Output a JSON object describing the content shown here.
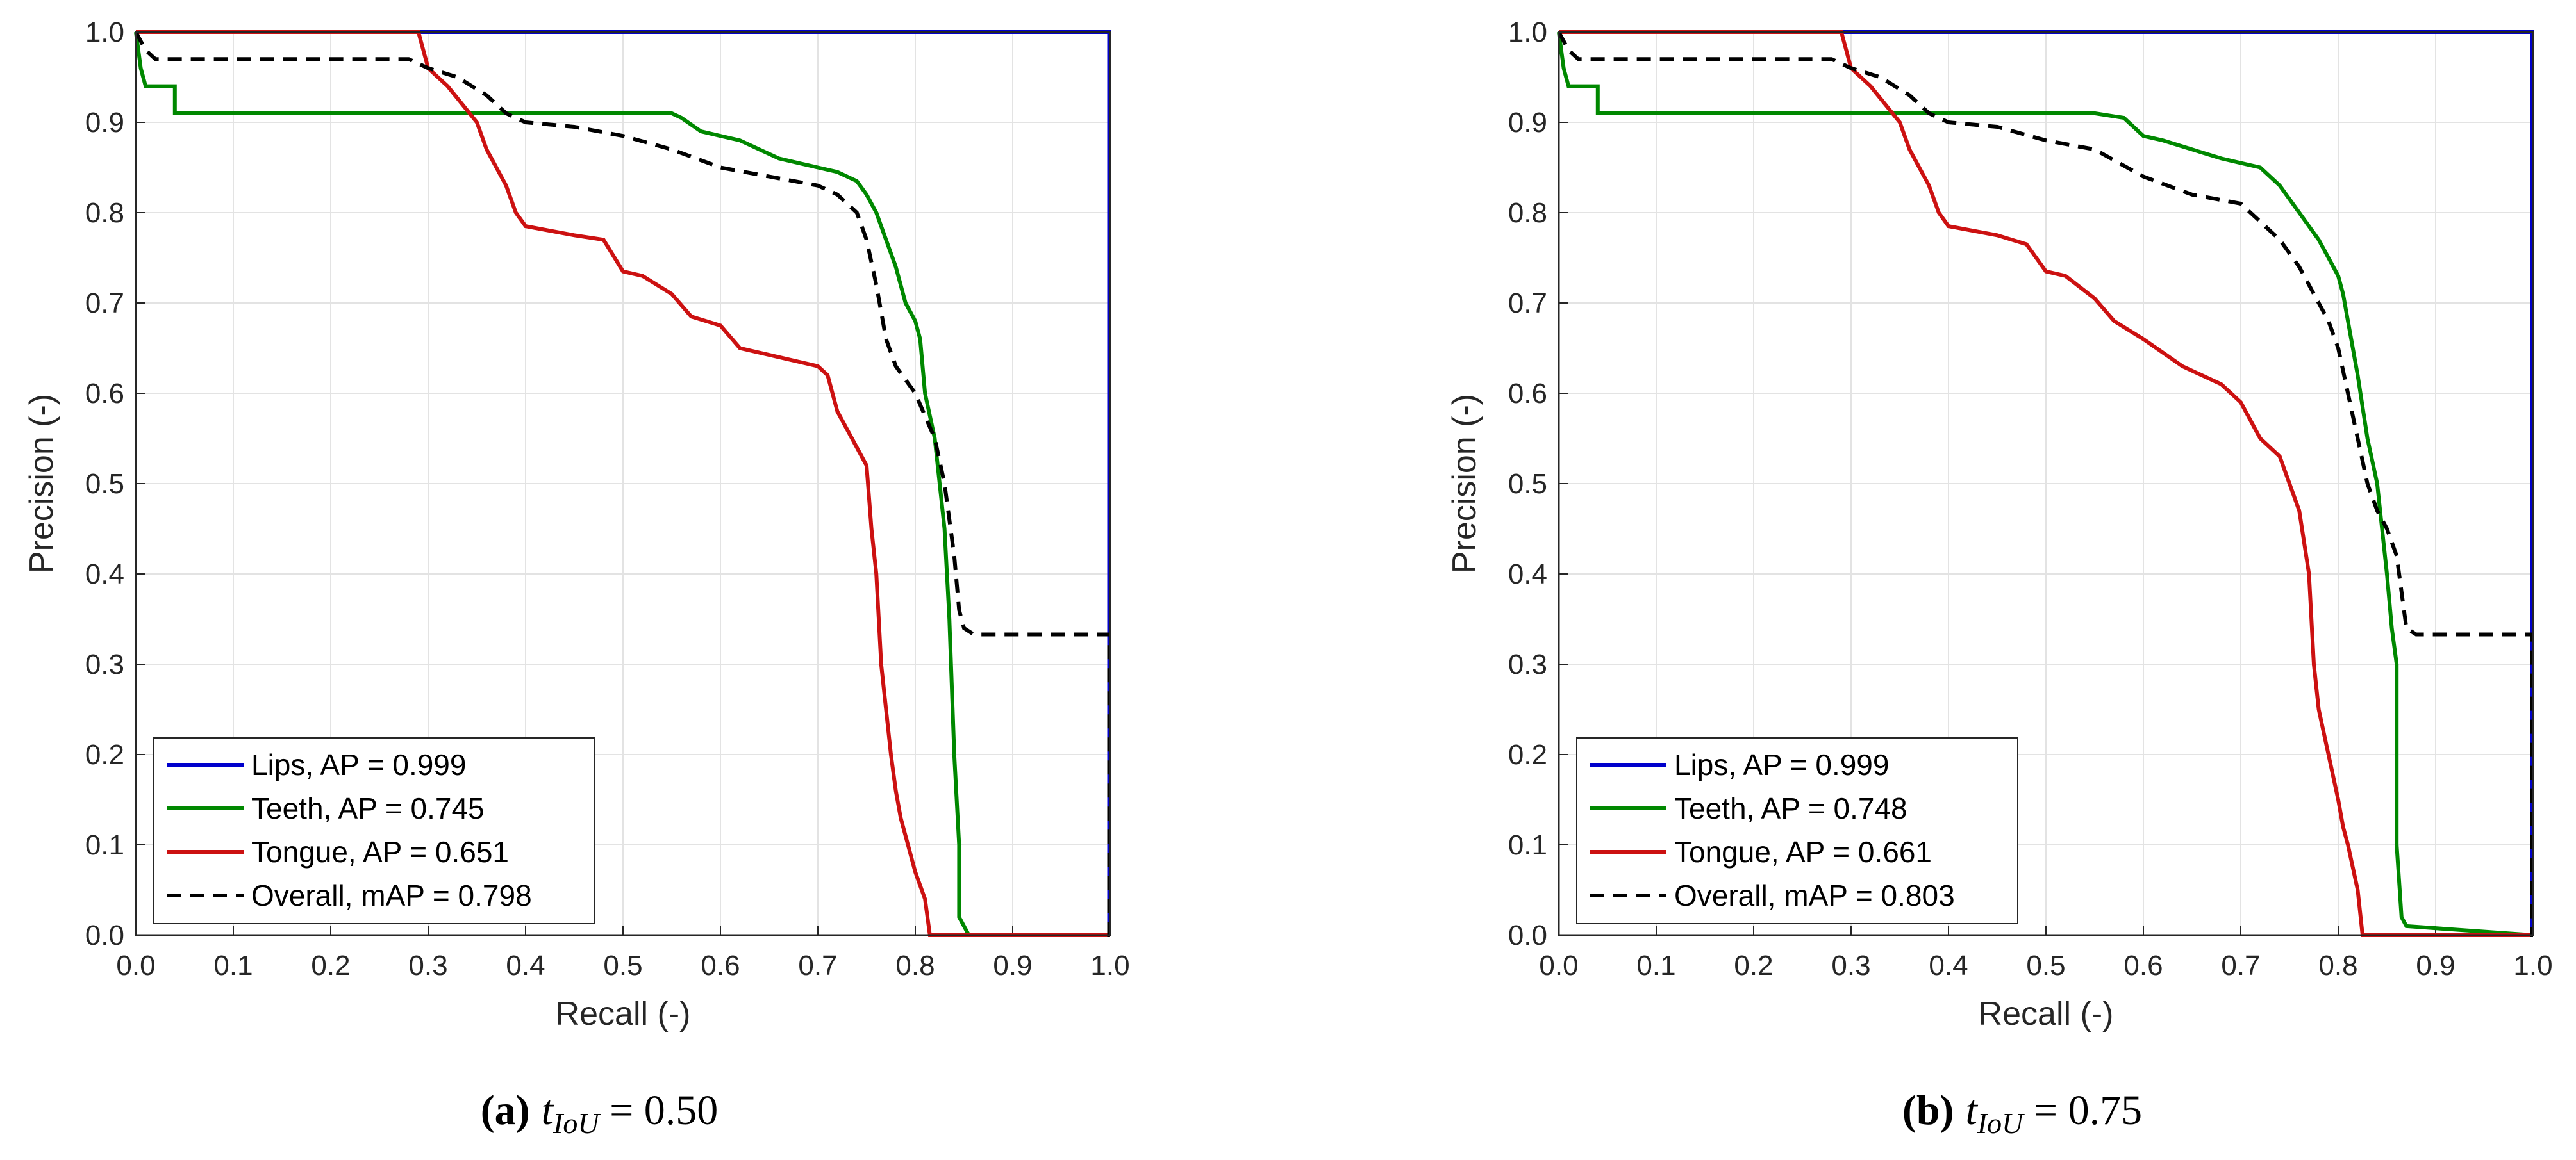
{
  "chart_data": [
    {
      "type": "line",
      "caption": {
        "letter": "(a)",
        "symbol": "t",
        "subscript": "IoU",
        "rest": " = 0.50"
      },
      "xlabel": "Recall (-)",
      "ylabel": "Precision (-)",
      "xlim": [
        0,
        1
      ],
      "ylim": [
        0,
        1
      ],
      "xticks": [
        "0.0",
        "0.1",
        "0.2",
        "0.3",
        "0.4",
        "0.5",
        "0.6",
        "0.7",
        "0.8",
        "0.9",
        "1.0"
      ],
      "yticks": [
        "0.0",
        "0.1",
        "0.2",
        "0.3",
        "0.4",
        "0.5",
        "0.6",
        "0.7",
        "0.8",
        "0.9",
        "1.0"
      ],
      "grid": true,
      "legend_position": "bottom-left",
      "series": [
        {
          "name": "Lips,  AP = 0.999",
          "color": "#0000cc",
          "dash": "solid",
          "x": [
            0,
            0.999,
            0.999,
            1.0
          ],
          "y": [
            1.0,
            1.0,
            0.0,
            0.0
          ]
        },
        {
          "name": "Teeth,  AP = 0.745",
          "color": "#008800",
          "dash": "solid",
          "x": [
            0,
            0.005,
            0.01,
            0.01,
            0.04,
            0.04,
            0.5,
            0.55,
            0.56,
            0.58,
            0.6,
            0.62,
            0.64,
            0.66,
            0.68,
            0.7,
            0.72,
            0.74,
            0.75,
            0.76,
            0.77,
            0.78,
            0.785,
            0.79,
            0.8,
            0.805,
            0.81,
            0.82,
            0.825,
            0.83,
            0.835,
            0.84,
            0.845,
            0.845,
            0.85,
            0.855,
            1.0
          ],
          "y": [
            1.0,
            0.96,
            0.94,
            0.94,
            0.94,
            0.91,
            0.91,
            0.91,
            0.905,
            0.89,
            0.885,
            0.88,
            0.87,
            0.86,
            0.855,
            0.85,
            0.845,
            0.835,
            0.82,
            0.8,
            0.77,
            0.74,
            0.72,
            0.7,
            0.68,
            0.66,
            0.6,
            0.55,
            0.5,
            0.45,
            0.35,
            0.2,
            0.1,
            0.02,
            0.01,
            0.0,
            0.0
          ]
        },
        {
          "name": "Tongue,  AP = 0.651",
          "color": "#cc1111",
          "dash": "solid",
          "x": [
            0,
            0.29,
            0.3,
            0.32,
            0.35,
            0.36,
            0.37,
            0.38,
            0.39,
            0.4,
            0.45,
            0.48,
            0.5,
            0.52,
            0.55,
            0.57,
            0.6,
            0.62,
            0.7,
            0.71,
            0.72,
            0.73,
            0.74,
            0.75,
            0.755,
            0.76,
            0.765,
            0.77,
            0.775,
            0.78,
            0.785,
            0.79,
            0.795,
            0.8,
            0.81,
            0.815,
            1.0
          ],
          "y": [
            1.0,
            1.0,
            0.96,
            0.94,
            0.9,
            0.87,
            0.85,
            0.83,
            0.8,
            0.785,
            0.775,
            0.77,
            0.735,
            0.73,
            0.71,
            0.685,
            0.675,
            0.65,
            0.63,
            0.62,
            0.58,
            0.56,
            0.54,
            0.52,
            0.45,
            0.4,
            0.3,
            0.25,
            0.2,
            0.16,
            0.13,
            0.11,
            0.09,
            0.07,
            0.04,
            0.0,
            0.0
          ]
        },
        {
          "name": "Overall,  mAP = 0.798",
          "color": "#000000",
          "dash": "dashed",
          "x": [
            0,
            0.01,
            0.02,
            0.28,
            0.3,
            0.33,
            0.36,
            0.38,
            0.4,
            0.45,
            0.5,
            0.55,
            0.6,
            0.65,
            0.7,
            0.72,
            0.74,
            0.75,
            0.76,
            0.77,
            0.78,
            0.8,
            0.82,
            0.83,
            0.84,
            0.845,
            0.85,
            0.86,
            0.999,
            0.999,
            1.0
          ],
          "y": [
            1.0,
            0.98,
            0.97,
            0.97,
            0.96,
            0.95,
            0.93,
            0.91,
            0.9,
            0.895,
            0.885,
            0.87,
            0.85,
            0.84,
            0.83,
            0.82,
            0.8,
            0.77,
            0.72,
            0.66,
            0.63,
            0.6,
            0.55,
            0.5,
            0.42,
            0.36,
            0.34,
            0.333,
            0.333,
            0.0,
            0.0
          ]
        }
      ]
    },
    {
      "type": "line",
      "caption": {
        "letter": "(b)",
        "symbol": "t",
        "subscript": "IoU",
        "rest": " = 0.75"
      },
      "xlabel": "Recall (-)",
      "ylabel": "Precision (-)",
      "xlim": [
        0,
        1
      ],
      "ylim": [
        0,
        1
      ],
      "xticks": [
        "0.0",
        "0.1",
        "0.2",
        "0.3",
        "0.4",
        "0.5",
        "0.6",
        "0.7",
        "0.8",
        "0.9",
        "1.0"
      ],
      "yticks": [
        "0.0",
        "0.1",
        "0.2",
        "0.3",
        "0.4",
        "0.5",
        "0.6",
        "0.7",
        "0.8",
        "0.9",
        "1.0"
      ],
      "grid": true,
      "legend_position": "bottom-left",
      "series": [
        {
          "name": "Lips,  AP = 0.999",
          "color": "#0000cc",
          "dash": "solid",
          "x": [
            0,
            0.999,
            0.999,
            1.0
          ],
          "y": [
            1.0,
            1.0,
            0.0,
            0.0
          ]
        },
        {
          "name": "Teeth,  AP = 0.748",
          "color": "#008800",
          "dash": "solid",
          "x": [
            0,
            0.005,
            0.01,
            0.01,
            0.04,
            0.04,
            0.5,
            0.55,
            0.58,
            0.6,
            0.62,
            0.65,
            0.68,
            0.7,
            0.72,
            0.74,
            0.76,
            0.78,
            0.8,
            0.805,
            0.81,
            0.82,
            0.83,
            0.84,
            0.845,
            0.85,
            0.855,
            0.86,
            0.86,
            0.865,
            0.87,
            1.0
          ],
          "y": [
            1.0,
            0.96,
            0.94,
            0.94,
            0.94,
            0.91,
            0.91,
            0.91,
            0.905,
            0.885,
            0.88,
            0.87,
            0.86,
            0.855,
            0.85,
            0.83,
            0.8,
            0.77,
            0.73,
            0.71,
            0.68,
            0.62,
            0.55,
            0.5,
            0.45,
            0.4,
            0.34,
            0.3,
            0.1,
            0.02,
            0.01,
            0.0
          ]
        },
        {
          "name": "Tongue,  AP = 0.661",
          "color": "#cc1111",
          "dash": "solid",
          "x": [
            0,
            0.29,
            0.3,
            0.32,
            0.35,
            0.36,
            0.37,
            0.38,
            0.39,
            0.4,
            0.45,
            0.48,
            0.5,
            0.52,
            0.55,
            0.57,
            0.6,
            0.62,
            0.64,
            0.68,
            0.7,
            0.72,
            0.74,
            0.75,
            0.76,
            0.77,
            0.775,
            0.78,
            0.79,
            0.8,
            0.805,
            0.81,
            0.82,
            0.825,
            1.0
          ],
          "y": [
            1.0,
            1.0,
            0.96,
            0.94,
            0.9,
            0.87,
            0.85,
            0.83,
            0.8,
            0.785,
            0.775,
            0.765,
            0.735,
            0.73,
            0.705,
            0.68,
            0.66,
            0.645,
            0.63,
            0.61,
            0.59,
            0.55,
            0.53,
            0.5,
            0.47,
            0.4,
            0.3,
            0.25,
            0.2,
            0.15,
            0.12,
            0.1,
            0.05,
            0.0,
            0.0
          ]
        },
        {
          "name": "Overall,  mAP = 0.803",
          "color": "#000000",
          "dash": "dashed",
          "x": [
            0,
            0.01,
            0.02,
            0.28,
            0.3,
            0.33,
            0.36,
            0.38,
            0.4,
            0.45,
            0.5,
            0.55,
            0.6,
            0.65,
            0.7,
            0.72,
            0.74,
            0.76,
            0.78,
            0.79,
            0.8,
            0.81,
            0.82,
            0.83,
            0.84,
            0.85,
            0.86,
            0.87,
            0.88,
            0.999,
            0.999,
            1.0
          ],
          "y": [
            1.0,
            0.98,
            0.97,
            0.97,
            0.96,
            0.95,
            0.93,
            0.91,
            0.9,
            0.895,
            0.88,
            0.87,
            0.84,
            0.82,
            0.81,
            0.79,
            0.77,
            0.74,
            0.7,
            0.68,
            0.65,
            0.6,
            0.55,
            0.5,
            0.47,
            0.45,
            0.42,
            0.34,
            0.333,
            0.333,
            0.0,
            0.0
          ]
        }
      ]
    }
  ]
}
